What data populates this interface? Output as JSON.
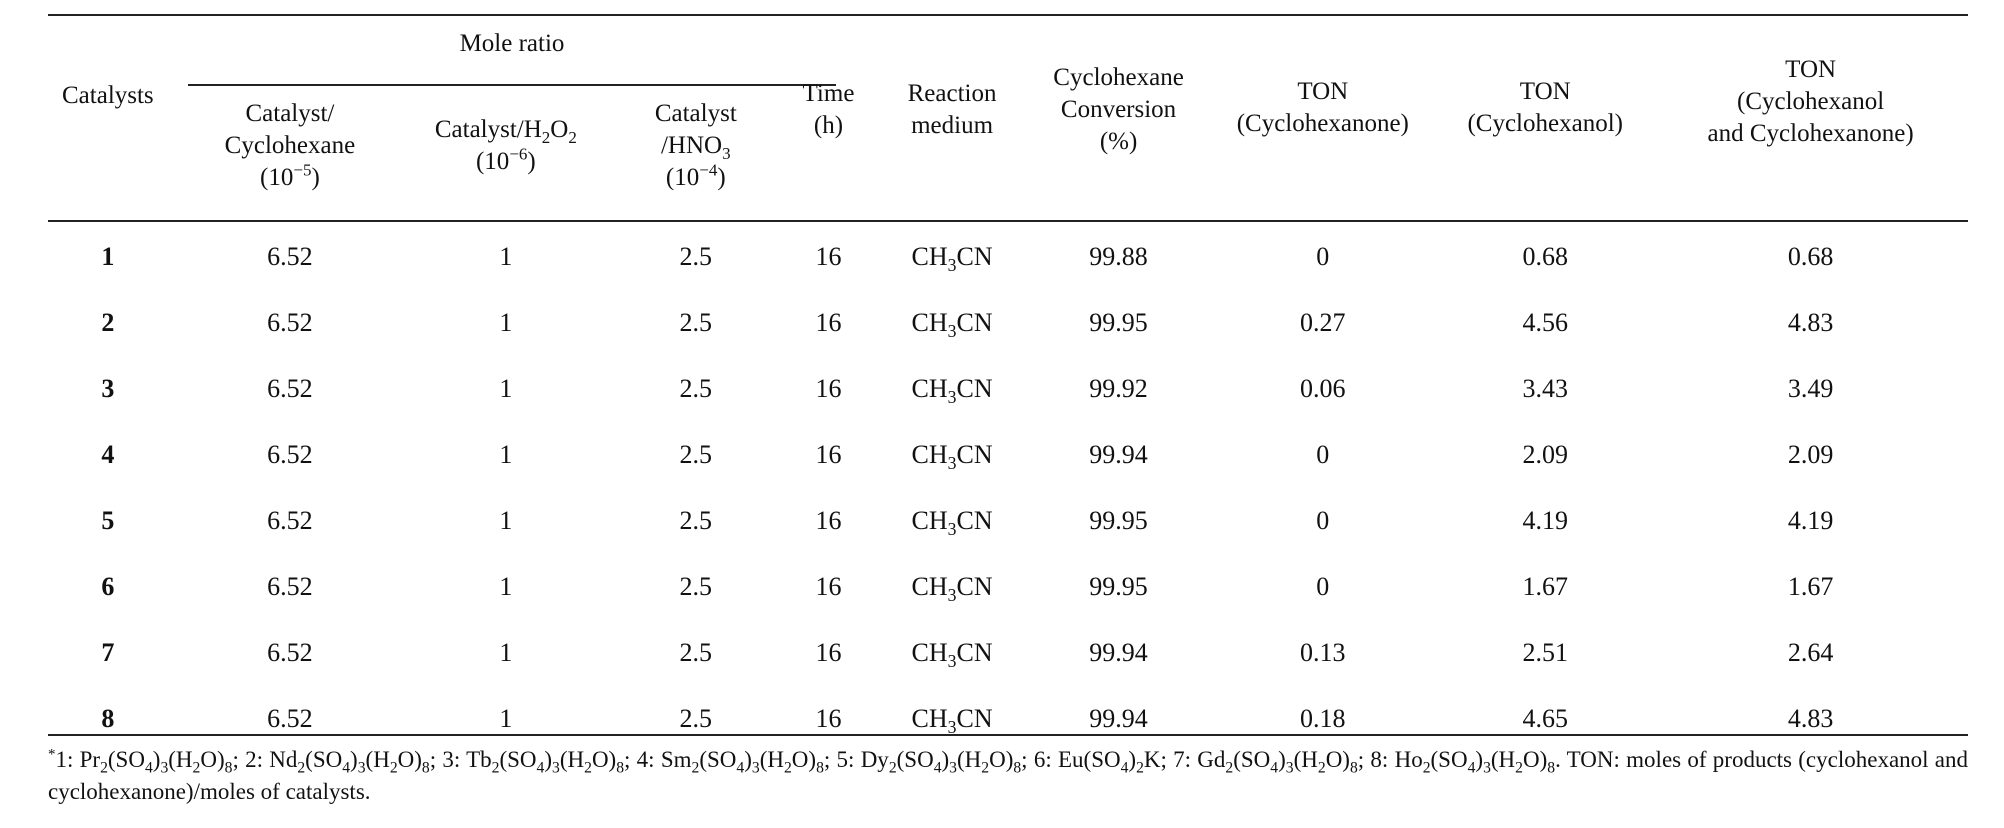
{
  "headers": {
    "catalysts": "Catalysts",
    "mole_ratio": "Mole ratio",
    "cat_cyclohexane": [
      "Catalyst/",
      "Cyclohexane",
      "(10^−5)"
    ],
    "cat_h2o2": [
      "Catalyst/H2O2",
      "(10^−6)"
    ],
    "cat_hno3": [
      "Catalyst",
      "/HNO3",
      "(10^−4)"
    ],
    "time": [
      "Time",
      "(h)"
    ],
    "medium": [
      "Reaction",
      "medium"
    ],
    "conversion": [
      "Cyclohexane",
      "Conversion",
      "(%)"
    ],
    "ton_one": [
      "TON",
      "(Cyclohexanone)"
    ],
    "ton_ol": [
      "TON",
      "(Cyclohexanol)"
    ],
    "ton_both": [
      "TON",
      "(Cyclohexanol",
      "and Cyclohexanone)"
    ]
  },
  "rows": [
    {
      "catalyst": "1",
      "cat_cyclohexane": "6.52",
      "cat_h2o2": "1",
      "cat_hno3": "2.5",
      "time": "16",
      "medium": "CH3CN",
      "conversion": "99.88",
      "ton_one": "0",
      "ton_ol": "0.68",
      "ton_both": "0.68"
    },
    {
      "catalyst": "2",
      "cat_cyclohexane": "6.52",
      "cat_h2o2": "1",
      "cat_hno3": "2.5",
      "time": "16",
      "medium": "CH3CN",
      "conversion": "99.95",
      "ton_one": "0.27",
      "ton_ol": "4.56",
      "ton_both": "4.83"
    },
    {
      "catalyst": "3",
      "cat_cyclohexane": "6.52",
      "cat_h2o2": "1",
      "cat_hno3": "2.5",
      "time": "16",
      "medium": "CH3CN",
      "conversion": "99.92",
      "ton_one": "0.06",
      "ton_ol": "3.43",
      "ton_both": "3.49"
    },
    {
      "catalyst": "4",
      "cat_cyclohexane": "6.52",
      "cat_h2o2": "1",
      "cat_hno3": "2.5",
      "time": "16",
      "medium": "CH3CN",
      "conversion": "99.94",
      "ton_one": "0",
      "ton_ol": "2.09",
      "ton_both": "2.09"
    },
    {
      "catalyst": "5",
      "cat_cyclohexane": "6.52",
      "cat_h2o2": "1",
      "cat_hno3": "2.5",
      "time": "16",
      "medium": "CH3CN",
      "conversion": "99.95",
      "ton_one": "0",
      "ton_ol": "4.19",
      "ton_both": "4.19"
    },
    {
      "catalyst": "6",
      "cat_cyclohexane": "6.52",
      "cat_h2o2": "1",
      "cat_hno3": "2.5",
      "time": "16",
      "medium": "CH3CN",
      "conversion": "99.95",
      "ton_one": "0",
      "ton_ol": "1.67",
      "ton_both": "1.67"
    },
    {
      "catalyst": "7",
      "cat_cyclohexane": "6.52",
      "cat_h2o2": "1",
      "cat_hno3": "2.5",
      "time": "16",
      "medium": "CH3CN",
      "conversion": "99.94",
      "ton_one": "0.13",
      "ton_ol": "2.51",
      "ton_both": "2.64"
    },
    {
      "catalyst": "8",
      "cat_cyclohexane": "6.52",
      "cat_h2o2": "1",
      "cat_hno3": "2.5",
      "time": "16",
      "medium": "CH3CN",
      "conversion": "99.94",
      "ton_one": "0.18",
      "ton_ol": "4.65",
      "ton_both": "4.83"
    }
  ],
  "footnote": "*1: Pr2(SO4)3(H2O)8; 2: Nd2(SO4)3(H2O)8; 3: Tb2(SO4)3(H2O)8; 4: Sm2(SO4)3(H2O)8; 5: Dy2(SO4)3(H2O)8; 6: Eu(SO4)2K; 7: Gd2(SO4)3(H2O)8; 8: Ho2(SO4)3(H2O)8. TON: moles of products (cyclohexanol and cyclohexanone)/moles of catalysts."
}
